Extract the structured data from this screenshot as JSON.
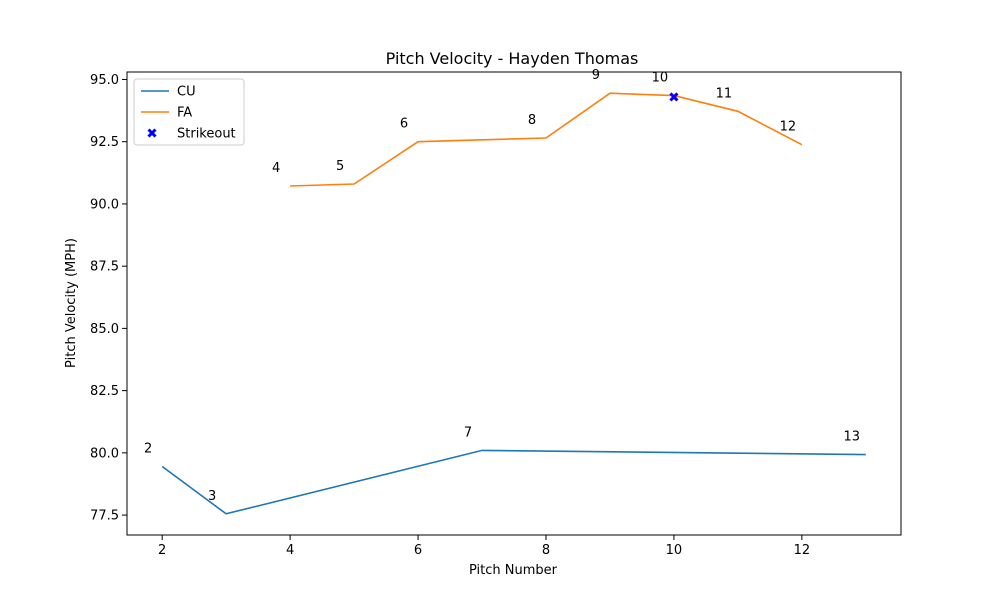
{
  "chart_data": {
    "type": "line",
    "title": "Pitch Velocity - Hayden Thomas",
    "xlabel": "Pitch Number",
    "ylabel": "Pitch Velocity (MPH)",
    "xlim": [
      1.45,
      13.55
    ],
    "ylim": [
      76.7,
      95.3
    ],
    "xticks": [
      2,
      4,
      6,
      8,
      10,
      12
    ],
    "yticks": [
      77.5,
      80.0,
      82.5,
      85.0,
      87.5,
      90.0,
      92.5,
      95.0
    ],
    "ytick_labels": [
      "77.5",
      "80.0",
      "82.5",
      "85.0",
      "87.5",
      "90.0",
      "92.5",
      "95.0"
    ],
    "grid": false,
    "legend_position": "top-left",
    "series": [
      {
        "name": "CU",
        "color": "#1f77b4",
        "x": [
          2,
          3,
          7,
          13
        ],
        "y": [
          79.45,
          77.55,
          80.1,
          79.93
        ],
        "labels": [
          "2",
          "3",
          "7",
          "13"
        ]
      },
      {
        "name": "FA",
        "color": "#ff7f0e",
        "x": [
          4,
          5,
          6,
          8,
          9,
          10,
          11,
          12
        ],
        "y": [
          90.72,
          90.8,
          92.5,
          92.65,
          94.45,
          94.35,
          93.72,
          92.38
        ],
        "labels": [
          "4",
          "5",
          "6",
          "8",
          "9",
          "10",
          "11",
          "12"
        ]
      }
    ],
    "markers": [
      {
        "name": "Strikeout",
        "color": "#0000ff",
        "shape": "x",
        "x": 10,
        "y": 94.3
      }
    ]
  }
}
